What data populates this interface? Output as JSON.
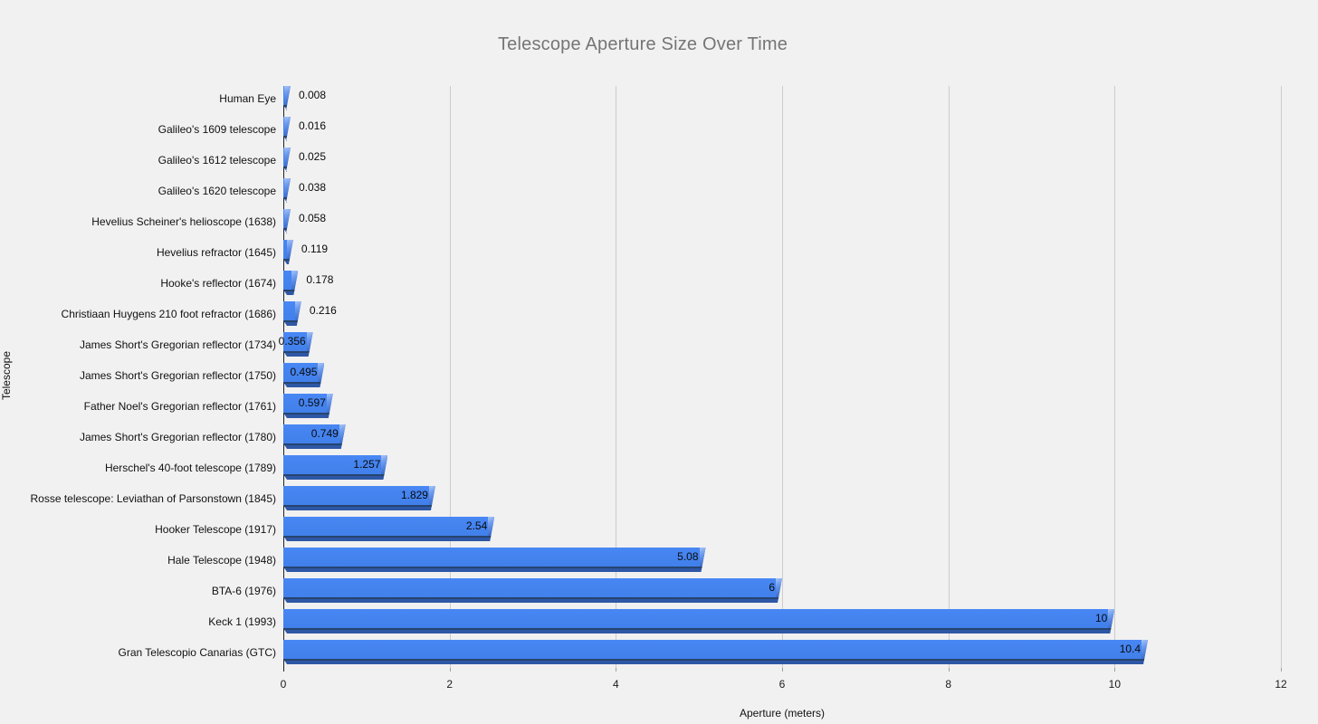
{
  "chart_data": {
    "type": "bar",
    "orientation": "horizontal",
    "title": "Telescope Aperture Size Over Time",
    "xlabel": "Aperture (meters)",
    "ylabel": "Telescope",
    "xlim": [
      0,
      12
    ],
    "xticks": [
      "0",
      "2",
      "4",
      "6",
      "8",
      "10",
      "12"
    ],
    "grid": true,
    "legend": "none",
    "categories": [
      "Human Eye",
      "Galileo's 1609 telescope",
      "Galileo's 1612 telescope",
      "Galileo's 1620 telescope",
      "Hevelius Scheiner's helioscope (1638)",
      "Hevelius refractor (1645)",
      "Hooke's reflector (1674)",
      "Christiaan Huygens 210 foot refractor (1686)",
      "James Short's Gregorian reflector (1734)",
      "James Short's Gregorian reflector (1750)",
      "Father Noel's Gregorian reflector (1761)",
      "James Short's Gregorian reflector (1780)",
      "Herschel's 40-foot telescope (1789)",
      "Rosse telescope: Leviathan of Parsonstown (1845)",
      "Hooker Telescope (1917)",
      "Hale Telescope (1948)",
      "BTA-6 (1976)",
      "Keck 1 (1993)",
      "Gran Telescopio Canarias (GTC)"
    ],
    "values": [
      0.008,
      0.016,
      0.025,
      0.038,
      0.058,
      0.119,
      0.178,
      0.216,
      0.356,
      0.495,
      0.597,
      0.749,
      1.257,
      1.829,
      2.54,
      5.08,
      6,
      10,
      10.4
    ],
    "value_labels": [
      "0.008",
      "0.016",
      "0.025",
      "0.038",
      "0.058",
      "0.119",
      "0.178",
      "0.216",
      "0.356",
      "0.495",
      "0.597",
      "0.749",
      "1.257",
      "1.829",
      "2.54",
      "5.08",
      "6",
      "10",
      "10.4"
    ]
  },
  "colors": {
    "background": "#f1f1f2",
    "bar_face": "#4484f0",
    "bar_shadow": "#2e57a5",
    "bar_highlight": "#a9c4f5",
    "gridline": "#cccccc",
    "axis_line": "#212121",
    "title_text": "#757575",
    "label_text": "#111111"
  }
}
